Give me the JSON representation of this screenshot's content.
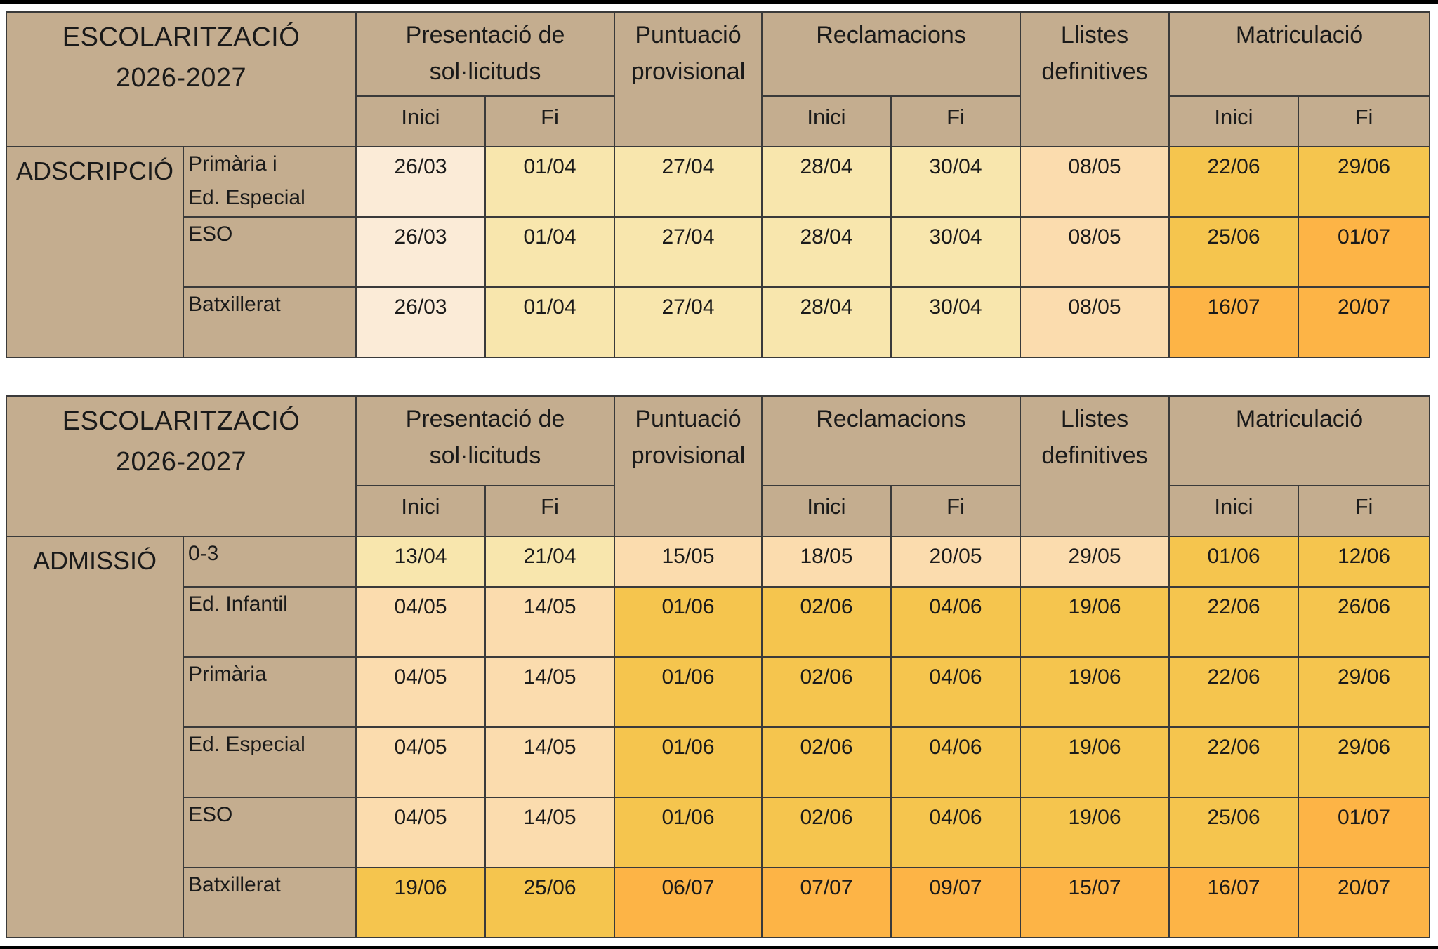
{
  "headers": {
    "title": "ESCOLARITZACIÓ",
    "year": "2026-2027",
    "presentacio": "Presentació de sol·licituds",
    "puntuacio": "Puntuació provisional",
    "reclamacions": "Reclamacions",
    "llistes": "Llistes definitives",
    "matriculacio": "Matriculació",
    "inici": "Inici",
    "fi": "Fi"
  },
  "adscripcio": {
    "label": "ADSCRIPCIÓ",
    "rows": [
      {
        "name_l1": "Primària i",
        "name_l2": "Ed. Especial",
        "pres_inici": "26/03",
        "pres_fi": "01/04",
        "puntuacio": "27/04",
        "recl_inici": "28/04",
        "recl_fi": "30/04",
        "llistes": "08/05",
        "mat_inici": "22/06",
        "mat_fi": "29/06"
      },
      {
        "name_l1": "ESO",
        "name_l2": "",
        "pres_inici": "26/03",
        "pres_fi": "01/04",
        "puntuacio": "27/04",
        "recl_inici": "28/04",
        "recl_fi": "30/04",
        "llistes": "08/05",
        "mat_inici": "25/06",
        "mat_fi": "01/07"
      },
      {
        "name_l1": "Batxillerat",
        "name_l2": "",
        "pres_inici": "26/03",
        "pres_fi": "01/04",
        "puntuacio": "27/04",
        "recl_inici": "28/04",
        "recl_fi": "30/04",
        "llistes": "08/05",
        "mat_inici": "16/07",
        "mat_fi": "20/07"
      }
    ]
  },
  "admissio": {
    "label": "ADMISSIÓ",
    "rows": [
      {
        "name": "0-3",
        "pres_inici": "13/04",
        "pres_fi": "21/04",
        "puntuacio": "15/05",
        "recl_inici": "18/05",
        "recl_fi": "20/05",
        "llistes": "29/05",
        "mat_inici": "01/06",
        "mat_fi": "12/06"
      },
      {
        "name": "Ed. Infantil",
        "pres_inici": "04/05",
        "pres_fi": "14/05",
        "puntuacio": "01/06",
        "recl_inici": "02/06",
        "recl_fi": "04/06",
        "llistes": "19/06",
        "mat_inici": "22/06",
        "mat_fi": "26/06"
      },
      {
        "name": "Primària",
        "pres_inici": "04/05",
        "pres_fi": "14/05",
        "puntuacio": "01/06",
        "recl_inici": "02/06",
        "recl_fi": "04/06",
        "llistes": "19/06",
        "mat_inici": "22/06",
        "mat_fi": "29/06"
      },
      {
        "name": "Ed. Especial",
        "pres_inici": "04/05",
        "pres_fi": "14/05",
        "puntuacio": "01/06",
        "recl_inici": "02/06",
        "recl_fi": "04/06",
        "llistes": "19/06",
        "mat_inici": "22/06",
        "mat_fi": "29/06"
      },
      {
        "name": "ESO",
        "pres_inici": "04/05",
        "pres_fi": "14/05",
        "puntuacio": "01/06",
        "recl_inici": "02/06",
        "recl_fi": "04/06",
        "llistes": "19/06",
        "mat_inici": "25/06",
        "mat_fi": "01/07"
      },
      {
        "name": "Batxillerat",
        "pres_inici": "19/06",
        "pres_fi": "25/06",
        "puntuacio": "06/07",
        "recl_inici": "07/07",
        "recl_fi": "09/07",
        "llistes": "15/07",
        "mat_inici": "16/07",
        "mat_fi": "20/07"
      }
    ]
  },
  "colors": {
    "header": "#c4ad8f",
    "pale": "#fbebd7",
    "light_yellow": "#f8e6ad",
    "peach": "#fbdcae",
    "gold": "#f5c54e",
    "orange": "#fdb446"
  }
}
